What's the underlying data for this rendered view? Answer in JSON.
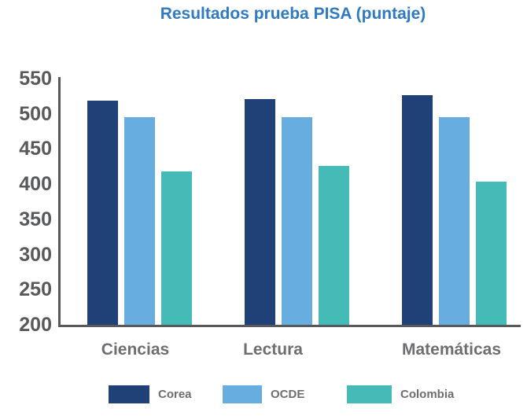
{
  "title": {
    "text": "Resultados prueba PISA (puntaje)",
    "color": "#2F7AC0"
  },
  "chart_data": {
    "type": "bar",
    "title": "Resultados prueba PISA (puntaje)",
    "categories": [
      "Ciencias",
      "Lectura",
      "Matemáticas"
    ],
    "series": [
      {
        "name": "Corea",
        "color": "#1F4178",
        "values": [
          519,
          521,
          526
        ]
      },
      {
        "name": "OCDE",
        "color": "#68ADE0",
        "values": [
          495,
          495,
          495
        ]
      },
      {
        "name": "Colombia",
        "color": "#44BBB7",
        "values": [
          418,
          426,
          404
        ]
      }
    ],
    "xlabel": "",
    "ylabel": "",
    "ylim": [
      200,
      550
    ],
    "yticks": [
      550,
      500,
      450,
      400,
      350,
      300,
      250,
      200
    ],
    "grid": false,
    "legend_position": "bottom"
  },
  "colors": {
    "axis": "#58595B",
    "tick_label": "#58595B",
    "category_label": "#6D6E71",
    "legend_label": "#6D6E71",
    "background": "#FFFFFF"
  }
}
